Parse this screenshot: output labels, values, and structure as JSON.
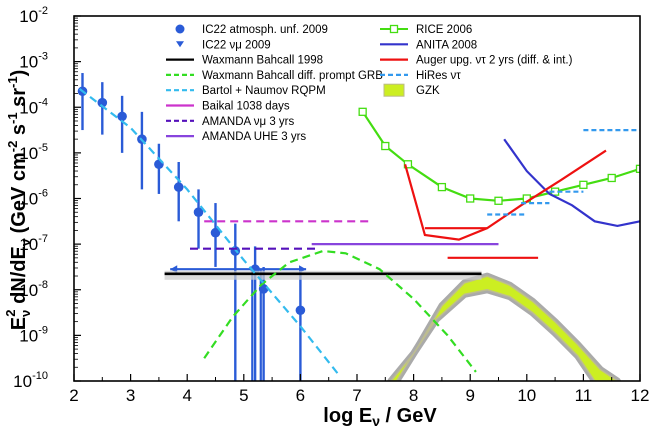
{
  "chart_data": {
    "type": "line",
    "xlabel": "log Eν / GeV",
    "ylabel": "Eν² dN/dEν (GeV cm⁻² s⁻¹ sr⁻¹)",
    "xlim": [
      2,
      12
    ],
    "ylim_log10": [
      -10,
      -2
    ],
    "yscale": "log",
    "grid": false,
    "legend_placement": "top",
    "x_ticks": [
      "2",
      "3",
      "4",
      "5",
      "6",
      "7",
      "8",
      "9",
      "10",
      "11",
      "12"
    ],
    "y_ticks": [
      {
        "base": "10",
        "exp": "-2"
      },
      {
        "base": "10",
        "exp": "-3"
      },
      {
        "base": "10",
        "exp": "-4"
      },
      {
        "base": "10",
        "exp": "-5"
      },
      {
        "base": "10",
        "exp": "-6"
      },
      {
        "base": "10",
        "exp": "-7"
      },
      {
        "base": "10",
        "exp": "-8"
      },
      {
        "base": "10",
        "exp": "-9"
      },
      {
        "base": "10",
        "exp": "-10"
      }
    ],
    "series": [
      {
        "name": "IC22 atmosph. unf. 2009",
        "kind": "points",
        "color": "#2a5bd7",
        "points": [
          {
            "x": 2.15,
            "y": -3.65,
            "lo": -4.5,
            "hi": -3.25
          },
          {
            "x": 2.5,
            "y": -3.9,
            "lo": -4.6,
            "hi": -3.45
          },
          {
            "x": 2.85,
            "y": -4.2,
            "lo": -5.0,
            "hi": -3.75
          },
          {
            "x": 3.2,
            "y": -4.7,
            "lo": -5.8,
            "hi": -4.1
          },
          {
            "x": 3.5,
            "y": -5.25,
            "lo": -5.9,
            "hi": -4.8
          },
          {
            "x": 3.85,
            "y": -5.75,
            "lo": -6.5,
            "hi": -5.2
          },
          {
            "x": 4.2,
            "y": -6.3,
            "lo": -7.1,
            "hi": -5.8
          },
          {
            "x": 4.5,
            "y": -6.75,
            "lo": -7.5,
            "hi": -6.1
          },
          {
            "x": 4.85,
            "y": -7.15,
            "lo": -10,
            "hi": -6.55
          },
          {
            "x": 5.2,
            "y": -7.55,
            "lo": -10,
            "hi": -7.05
          },
          {
            "x": 5.35,
            "y": -7.98,
            "lo": -10,
            "hi": -7.5
          },
          {
            "x": 6.0,
            "y": -8.45,
            "lo": -10,
            "hi": -7.55
          }
        ]
      },
      {
        "name": "IC22 νμ 2009",
        "kind": "segment",
        "color": "#2a5bd7",
        "points": [
          {
            "x": 3.7,
            "y": -7.55
          },
          {
            "x": 6.1,
            "y": -7.55
          }
        ],
        "error_bar_x": [
          5.15,
          5.3
        ]
      },
      {
        "name": "Waxmann Bahcall 1998",
        "kind": "segment",
        "color": "#000000",
        "points": [
          {
            "x": 3.6,
            "y": -7.65
          },
          {
            "x": 9.2,
            "y": -7.65
          }
        ]
      },
      {
        "name": "Waxmann Bahcall diff. prompt GRB",
        "kind": "curve",
        "color": "#33dd22",
        "dash": true,
        "points": [
          {
            "x": 4.3,
            "y": -9.5
          },
          {
            "x": 4.8,
            "y": -8.6
          },
          {
            "x": 5.3,
            "y": -7.9
          },
          {
            "x": 5.8,
            "y": -7.4
          },
          {
            "x": 6.4,
            "y": -7.15
          },
          {
            "x": 6.8,
            "y": -7.2
          },
          {
            "x": 7.4,
            "y": -7.55
          },
          {
            "x": 8.0,
            "y": -8.2
          },
          {
            "x": 8.6,
            "y": -9.0
          },
          {
            "x": 9.1,
            "y": -9.8
          }
        ]
      },
      {
        "name": "Bartol + Naumov RQPM",
        "kind": "curve",
        "color": "#33bbee",
        "dash": true,
        "points": [
          {
            "x": 2.1,
            "y": -3.6
          },
          {
            "x": 3.0,
            "y": -4.45
          },
          {
            "x": 4.0,
            "y": -5.8
          },
          {
            "x": 5.0,
            "y": -7.35
          },
          {
            "x": 6.0,
            "y": -8.8
          },
          {
            "x": 6.7,
            "y": -9.9
          }
        ]
      },
      {
        "name": "Baikal 1038 days",
        "kind": "segment",
        "color": "#cc33cc",
        "dash": true,
        "points": [
          {
            "x": 4.3,
            "y": -6.5
          },
          {
            "x": 7.2,
            "y": -6.5
          }
        ]
      },
      {
        "name": "AMANDA νμ 3 yrs",
        "kind": "segment",
        "color": "#5511bb",
        "dash": true,
        "points": [
          {
            "x": 4.05,
            "y": -7.1
          },
          {
            "x": 6.3,
            "y": -7.1
          }
        ]
      },
      {
        "name": "AMANDA UHE 3 yrs",
        "kind": "segment",
        "color": "#8844dd",
        "points": [
          {
            "x": 6.2,
            "y": -7.0
          },
          {
            "x": 9.5,
            "y": -7.0
          }
        ]
      },
      {
        "name": "RICE 2006",
        "kind": "curve",
        "color": "#44dd11",
        "markers": true,
        "points": [
          {
            "x": 7.1,
            "y": -4.1
          },
          {
            "x": 7.5,
            "y": -4.85
          },
          {
            "x": 7.9,
            "y": -5.25
          },
          {
            "x": 8.5,
            "y": -5.75
          },
          {
            "x": 9.0,
            "y": -6.0
          },
          {
            "x": 9.5,
            "y": -6.05
          },
          {
            "x": 10.0,
            "y": -6.0
          },
          {
            "x": 10.5,
            "y": -5.85
          },
          {
            "x": 11.0,
            "y": -5.7
          },
          {
            "x": 11.5,
            "y": -5.55
          },
          {
            "x": 12.0,
            "y": -5.35
          }
        ]
      },
      {
        "name": "ANITA 2008",
        "kind": "curve",
        "color": "#3333cc",
        "points": [
          {
            "x": 9.6,
            "y": -4.7
          },
          {
            "x": 10.0,
            "y": -5.4
          },
          {
            "x": 10.4,
            "y": -5.9
          },
          {
            "x": 10.8,
            "y": -6.15
          },
          {
            "x": 11.2,
            "y": -6.5
          },
          {
            "x": 11.6,
            "y": -6.6
          },
          {
            "x": 12.0,
            "y": -6.5
          }
        ]
      },
      {
        "name": "Auger upg. ντ 2 yrs (diff. & int.)",
        "kind": "curve",
        "color": "#ee1111",
        "points": [
          {
            "x": 7.85,
            "y": -5.25
          },
          {
            "x": 8.2,
            "y": -6.8
          },
          {
            "x": 8.8,
            "y": -6.9
          },
          {
            "x": 9.3,
            "y": -6.65
          },
          {
            "x": 9.9,
            "y": -6.15
          },
          {
            "x": 10.6,
            "y": -5.6
          },
          {
            "x": 11.4,
            "y": -4.95
          }
        ],
        "extra_segments": [
          [
            {
              "x": 8.2,
              "y": -6.65
            },
            {
              "x": 9.3,
              "y": -6.65
            }
          ],
          [
            {
              "x": 8.6,
              "y": -7.3
            },
            {
              "x": 10.2,
              "y": -7.3
            }
          ]
        ]
      },
      {
        "name": "HiRes ντ",
        "kind": "steps",
        "color": "#3399ee",
        "dash": true,
        "segments": [
          [
            {
              "x": 9.3,
              "y": -6.35
            },
            {
              "x": 10.0,
              "y": -6.35
            }
          ],
          [
            {
              "x": 9.9,
              "y": -6.1
            },
            {
              "x": 10.4,
              "y": -6.1
            }
          ],
          [
            {
              "x": 10.4,
              "y": -5.85
            },
            {
              "x": 11.0,
              "y": -5.85
            }
          ],
          [
            {
              "x": 11.0,
              "y": -4.5
            },
            {
              "x": 12.0,
              "y": -4.5
            }
          ]
        ]
      },
      {
        "name": "GZK",
        "kind": "band",
        "color": "#ccee22",
        "upper": [
          {
            "x": 7.7,
            "y": -10
          },
          {
            "x": 8.1,
            "y": -9.2
          },
          {
            "x": 8.5,
            "y": -8.35
          },
          {
            "x": 8.9,
            "y": -7.85
          },
          {
            "x": 9.3,
            "y": -7.7
          },
          {
            "x": 9.7,
            "y": -7.9
          },
          {
            "x": 10.1,
            "y": -8.25
          },
          {
            "x": 10.5,
            "y": -8.7
          },
          {
            "x": 10.9,
            "y": -9.2
          },
          {
            "x": 11.3,
            "y": -9.75
          },
          {
            "x": 11.6,
            "y": -10
          }
        ],
        "lower": [
          {
            "x": 7.6,
            "y": -10
          },
          {
            "x": 8.0,
            "y": -9.4
          },
          {
            "x": 8.4,
            "y": -8.65
          },
          {
            "x": 8.9,
            "y": -8.1
          },
          {
            "x": 9.3,
            "y": -8.0
          },
          {
            "x": 9.7,
            "y": -8.15
          },
          {
            "x": 10.1,
            "y": -8.5
          },
          {
            "x": 10.5,
            "y": -8.95
          },
          {
            "x": 10.9,
            "y": -9.45
          },
          {
            "x": 11.2,
            "y": -10
          }
        ]
      }
    ],
    "legend": {
      "left": [
        {
          "label": "IC22 atmosph. unf. 2009",
          "icon": "circle",
          "color": "#2a5bd7"
        },
        {
          "label": "IC22 νμ 2009",
          "icon": "triangle",
          "color": "#2a5bd7"
        },
        {
          "label": "Waxmann Bahcall 1998",
          "icon": "line",
          "color": "#000000"
        },
        {
          "label": "Waxmann Bahcall diff. prompt GRB",
          "icon": "dash",
          "color": "#33dd22"
        },
        {
          "label": "Bartol + Naumov RQPM",
          "icon": "dash",
          "color": "#33bbee"
        },
        {
          "label": "Baikal 1038 days",
          "icon": "line",
          "color": "#cc33cc"
        },
        {
          "label": "AMANDA νμ 3 yrs",
          "icon": "dash",
          "color": "#5511bb"
        },
        {
          "label": "AMANDA UHE 3 yrs",
          "icon": "line",
          "color": "#8844dd"
        }
      ],
      "right": [
        {
          "label": "RICE 2006",
          "icon": "square-line",
          "color": "#44dd11"
        },
        {
          "label": "ANITA 2008",
          "icon": "line",
          "color": "#3333cc"
        },
        {
          "label": "Auger upg. ντ 2 yrs (diff. & int.)",
          "icon": "line",
          "color": "#ee1111"
        },
        {
          "label": "HiRes ντ",
          "icon": "dash",
          "color": "#3399ee"
        },
        {
          "label": "GZK",
          "icon": "band",
          "color": "#ccee22"
        }
      ]
    }
  }
}
